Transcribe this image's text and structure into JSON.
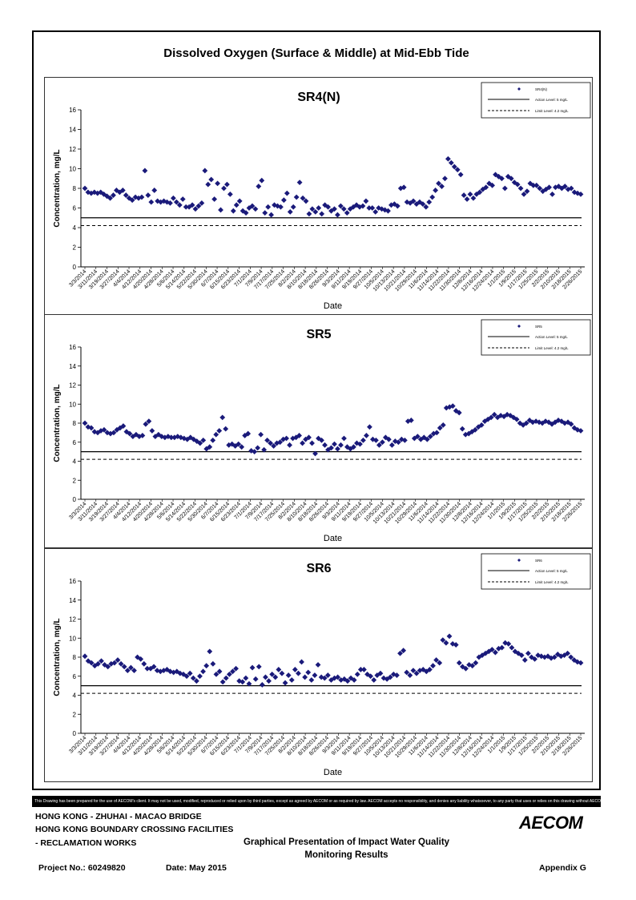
{
  "page_title": "Dissolved Oxygen (Surface & Middle) at Mid-Ebb Tide",
  "disclaimer": "This Drawing has been prepared for the use of AECOM's client. It may not be used, modified, reproduced or relied upon by third parties, except as agreed by AECOM or as required by law. AECOM accepts no responsibility, and denies any liability whatsoever, to any party that uses or relies on this drawing without AECOM's express written consent.",
  "footer": {
    "line1": "HONG KONG - ZHUHAI - MACAO BRIDGE",
    "line2": "HONG KONG BOUNDARY CROSSING FACILITIES",
    "line3": "- RECLAMATION WORKS",
    "logo": "AECOM",
    "report_title_1": "Graphical Presentation of Impact Water Quality",
    "report_title_2": "Monitoring Results",
    "project_no": "Project No.: 60249820",
    "date": "Date: May 2015",
    "appendix": "Appendix G"
  },
  "chart_data": [
    {
      "type": "scatter",
      "title": "SR4(N)",
      "xlabel": "Date",
      "ylabel": "Concentration, mg/L",
      "ylim": [
        0,
        16
      ],
      "yticks": [
        0,
        2,
        4,
        6,
        8,
        10,
        12,
        14,
        16
      ],
      "xticks": [
        "3/3/2014",
        "3/11/2014",
        "3/19/2014",
        "3/27/2014",
        "4/4/2014",
        "4/12/2014",
        "4/20/2014",
        "4/28/2014",
        "5/6/2014",
        "5/14/2014",
        "5/22/2014",
        "5/30/2014",
        "6/7/2014",
        "6/15/2014",
        "6/23/2014",
        "7/1/2014",
        "7/9/2014",
        "7/17/2014",
        "7/25/2014",
        "8/2/2014",
        "8/10/2014",
        "8/18/2014",
        "8/26/2014",
        "9/3/2014",
        "9/11/2014",
        "9/19/2014",
        "9/27/2014",
        "10/5/2014",
        "10/13/2014",
        "10/21/2014",
        "10/29/2014",
        "11/6/2014",
        "11/14/2014",
        "11/22/2014",
        "11/30/2014",
        "12/8/2014",
        "12/16/2014",
        "12/24/2014",
        "1/1/2015",
        "1/9/2015",
        "1/17/2015",
        "1/25/2015",
        "2/2/2015",
        "2/10/2015",
        "2/18/2015",
        "2/26/2015"
      ],
      "legend": {
        "series": "SR4(N)",
        "action": "Action Level: 5 mg/L",
        "limit": "Limit Level: 4.2 mg/L",
        "position": "top-right"
      },
      "action_level": 5,
      "limit_level": 4.2,
      "series": [
        {
          "name": "SR4(N)",
          "values": [
            8.0,
            7.6,
            7.5,
            7.6,
            7.5,
            7.6,
            7.4,
            7.2,
            7.0,
            7.3,
            7.8,
            7.6,
            7.8,
            7.3,
            7.0,
            6.8,
            7.1,
            7.0,
            7.1,
            9.8,
            7.3,
            6.6,
            7.8,
            6.7,
            6.6,
            6.7,
            6.6,
            6.5,
            7.0,
            6.6,
            6.3,
            6.9,
            6.1,
            6.1,
            6.3,
            5.9,
            6.2,
            6.5,
            9.8,
            8.4,
            8.9,
            6.9,
            8.5,
            5.8,
            8.0,
            8.4,
            7.4,
            5.7,
            6.3,
            6.7,
            5.7,
            5.5,
            6.0,
            6.2,
            5.9,
            8.2,
            8.8,
            5.5,
            6.1,
            5.3,
            6.3,
            6.2,
            6.1,
            6.8,
            7.5,
            5.6,
            6.1,
            7.1,
            8.6,
            7.0,
            6.7,
            5.4,
            5.9,
            5.6,
            6.0,
            5.4,
            6.3,
            6.1,
            5.7,
            5.9,
            5.3,
            6.2,
            5.9,
            5.5,
            5.9,
            6.1,
            6.3,
            6.1,
            6.2,
            6.7,
            6.0,
            6.0,
            5.6,
            6.0,
            5.9,
            5.8,
            5.7,
            6.3,
            6.4,
            6.2,
            8.0,
            8.1,
            6.6,
            6.5,
            6.7,
            6.4,
            6.6,
            6.4,
            6.1,
            6.6,
            7.1,
            7.8,
            8.5,
            8.2,
            9.0,
            11.0,
            10.6,
            10.2,
            9.9,
            9.4,
            7.3,
            6.9,
            7.4,
            7.0,
            7.4,
            7.6,
            7.9,
            8.1,
            8.5,
            8.3,
            9.4,
            9.2,
            9.0,
            8.0,
            9.2,
            9.0,
            8.6,
            8.4,
            8.0,
            7.4,
            7.7,
            8.5,
            8.3,
            8.3,
            8.0,
            7.7,
            7.9,
            8.1,
            7.4,
            8.1,
            8.2,
            8.0,
            8.2,
            7.9,
            8.0,
            7.6,
            7.5,
            7.4
          ]
        }
      ]
    },
    {
      "type": "scatter",
      "title": "SR5",
      "xlabel": "Date",
      "ylabel": "Concentration, mg/L",
      "ylim": [
        0,
        16
      ],
      "yticks": [
        0,
        2,
        4,
        6,
        8,
        10,
        12,
        14,
        16
      ],
      "xticks": [
        "3/3/2014",
        "3/11/2014",
        "3/19/2014",
        "3/27/2014",
        "4/4/2014",
        "4/12/2014",
        "4/20/2014",
        "4/28/2014",
        "5/6/2014",
        "5/14/2014",
        "5/22/2014",
        "5/30/2014",
        "6/7/2014",
        "6/15/2014",
        "6/23/2014",
        "7/1/2014",
        "7/9/2014",
        "7/17/2014",
        "7/25/2014",
        "8/2/2014",
        "8/10/2014",
        "8/18/2014",
        "8/26/2014",
        "9/3/2014",
        "9/11/2014",
        "9/19/2014",
        "9/27/2014",
        "10/5/2014",
        "10/13/2014",
        "10/21/2014",
        "10/29/2014",
        "11/6/2014",
        "11/14/2014",
        "11/22/2014",
        "11/30/2014",
        "12/8/2014",
        "12/16/2014",
        "12/24/2014",
        "1/1/2015",
        "1/9/2015",
        "1/17/2015",
        "1/25/2015",
        "2/2/2015",
        "2/10/2015",
        "2/18/2015",
        "2/26/2015"
      ],
      "legend": {
        "series": "SR5",
        "action": "Action Level: 5 mg/L",
        "limit": "Limit Level: 4.2 mg/L",
        "position": "top-right"
      },
      "action_level": 5,
      "limit_level": 4.2,
      "series": [
        {
          "name": "SR5",
          "values": [
            8.0,
            7.6,
            7.5,
            7.1,
            7.0,
            7.2,
            7.3,
            7.0,
            6.9,
            7.0,
            7.3,
            7.5,
            7.7,
            7.1,
            6.9,
            6.6,
            6.8,
            6.6,
            6.7,
            7.9,
            8.2,
            7.2,
            6.6,
            6.8,
            6.6,
            6.5,
            6.6,
            6.5,
            6.5,
            6.6,
            6.5,
            6.4,
            6.3,
            6.5,
            6.3,
            6.1,
            5.9,
            6.2,
            5.3,
            5.5,
            6.2,
            6.8,
            7.2,
            8.6,
            7.4,
            5.7,
            5.8,
            5.6,
            5.8,
            5.5,
            6.7,
            6.9,
            5.1,
            5.0,
            5.4,
            6.8,
            5.2,
            6.2,
            5.9,
            5.6,
            5.9,
            6.0,
            6.3,
            6.4,
            5.7,
            6.4,
            6.5,
            6.7,
            5.9,
            6.3,
            6.5,
            5.9,
            4.8,
            6.4,
            6.2,
            5.7,
            5.2,
            5.4,
            5.8,
            5.3,
            5.7,
            6.4,
            5.5,
            5.3,
            5.5,
            5.9,
            5.8,
            6.2,
            6.7,
            7.6,
            6.3,
            6.2,
            5.7,
            6.0,
            6.5,
            6.3,
            5.7,
            6.1,
            6.0,
            6.3,
            6.2,
            8.2,
            8.3,
            6.4,
            6.6,
            6.3,
            6.5,
            6.3,
            6.6,
            6.9,
            7.0,
            7.5,
            7.8,
            9.6,
            9.7,
            9.8,
            9.3,
            9.1,
            7.4,
            6.8,
            6.9,
            7.1,
            7.3,
            7.6,
            7.8,
            8.2,
            8.4,
            8.6,
            8.9,
            8.6,
            8.8,
            8.7,
            8.9,
            8.8,
            8.6,
            8.4,
            8.0,
            7.8,
            8.0,
            8.3,
            8.1,
            8.2,
            8.1,
            8.0,
            8.2,
            8.1,
            7.9,
            8.1,
            8.3,
            8.2,
            8.0,
            8.1,
            7.9,
            7.5,
            7.3,
            7.2
          ]
        }
      ]
    },
    {
      "type": "scatter",
      "title": "SR6",
      "xlabel": "Date",
      "ylabel": "Concentration, mg/L",
      "ylim": [
        0,
        16
      ],
      "yticks": [
        0,
        2,
        4,
        6,
        8,
        10,
        12,
        14,
        16
      ],
      "xticks": [
        "3/3/2014",
        "3/11/2014",
        "3/19/2014",
        "3/27/2014",
        "4/4/2014",
        "4/12/2014",
        "4/20/2014",
        "4/28/2014",
        "5/6/2014",
        "5/14/2014",
        "5/22/2014",
        "5/30/2014",
        "6/7/2014",
        "6/15/2014",
        "6/23/2014",
        "7/1/2014",
        "7/9/2014",
        "7/17/2014",
        "7/25/2014",
        "8/2/2014",
        "8/10/2014",
        "8/18/2014",
        "8/26/2014",
        "9/3/2014",
        "9/11/2014",
        "9/19/2014",
        "9/27/2014",
        "10/5/2014",
        "10/13/2014",
        "10/21/2014",
        "10/29/2014",
        "11/6/2014",
        "11/14/2014",
        "11/22/2014",
        "11/30/2014",
        "12/8/2014",
        "12/16/2014",
        "12/24/2014",
        "1/1/2015",
        "1/9/2015",
        "1/17/2015",
        "1/25/2015",
        "2/2/2015",
        "2/10/2015",
        "2/18/2015",
        "2/26/2015"
      ],
      "legend": {
        "series": "SR6",
        "action": "Action Level: 5 mg/L",
        "limit": "Limit Level: 4.2 mg/L",
        "position": "top-right"
      },
      "action_level": 5,
      "limit_level": 4.2,
      "series": [
        {
          "name": "SR6",
          "values": [
            8.1,
            7.6,
            7.4,
            7.1,
            7.3,
            7.6,
            7.2,
            7.0,
            7.3,
            7.4,
            7.7,
            7.3,
            7.0,
            6.6,
            6.9,
            6.6,
            8.0,
            7.8,
            7.3,
            6.8,
            6.8,
            7.0,
            6.6,
            6.5,
            6.6,
            6.7,
            6.5,
            6.4,
            6.5,
            6.3,
            6.2,
            6.0,
            6.3,
            5.8,
            5.5,
            6.0,
            6.5,
            7.1,
            8.6,
            7.3,
            6.2,
            6.5,
            5.4,
            5.8,
            6.2,
            6.5,
            6.8,
            5.5,
            5.4,
            5.8,
            5.2,
            6.9,
            5.7,
            7.0,
            5.1,
            5.9,
            5.5,
            6.2,
            5.9,
            6.7,
            6.3,
            5.3,
            6.1,
            5.6,
            6.7,
            6.3,
            7.5,
            5.9,
            6.4,
            5.6,
            6.1,
            7.2,
            5.9,
            5.8,
            6.1,
            5.6,
            5.8,
            5.9,
            5.6,
            5.7,
            5.5,
            5.8,
            5.6,
            6.2,
            6.7,
            6.7,
            6.2,
            6.0,
            5.6,
            6.1,
            6.3,
            5.8,
            5.7,
            5.9,
            6.2,
            6.1,
            8.4,
            8.7,
            6.4,
            6.1,
            6.6,
            6.3,
            6.6,
            6.7,
            6.5,
            6.7,
            7.1,
            7.7,
            7.4,
            9.8,
            9.5,
            10.2,
            9.4,
            9.3,
            7.4,
            7.0,
            6.8,
            7.2,
            7.1,
            7.4,
            8.0,
            8.2,
            8.4,
            8.6,
            8.8,
            8.5,
            8.9,
            9.0,
            9.5,
            9.4,
            9.0,
            8.6,
            8.4,
            8.2,
            7.7,
            8.4,
            8.0,
            7.8,
            8.2,
            8.1,
            8.0,
            8.1,
            7.9,
            8.0,
            8.3,
            8.1,
            8.2,
            8.4,
            8.0,
            7.7,
            7.5,
            7.4
          ]
        }
      ]
    }
  ]
}
